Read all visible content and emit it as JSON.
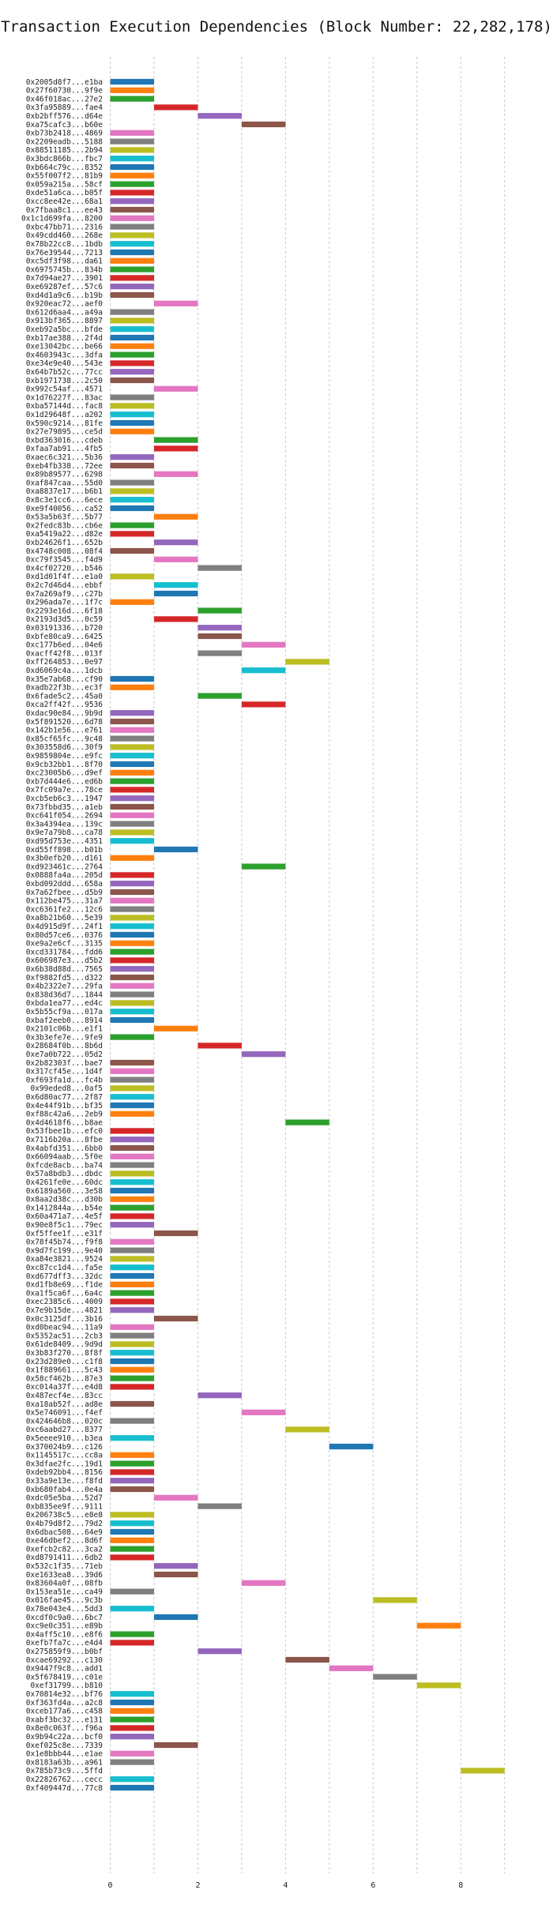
{
  "chart_data": {
    "type": "bar",
    "orientation": "horizontal-gantt",
    "title": "Transaction Execution Dependencies (Block Number: 22,282,178)",
    "xlabel": "",
    "ylabel": "",
    "xlim": [
      -0.1,
      9.6
    ],
    "xticks": [
      0,
      2,
      4,
      6,
      8
    ],
    "grid": true,
    "palette": [
      "#1f77b4",
      "#ff7f0e",
      "#2ca02c",
      "#d62728",
      "#9467bd",
      "#8c564b",
      "#e377c2",
      "#7f7f7f",
      "#bcbd22",
      "#17becf"
    ],
    "transactions": [
      {
        "label": "0x2005d8f7...e1ba",
        "start": 0
      },
      {
        "label": "0x27f60730...9f9e",
        "start": 0
      },
      {
        "label": "0x46f018ac...27e2",
        "start": 0
      },
      {
        "label": "0x3fa95889...fae4",
        "start": 1
      },
      {
        "label": "0xb2bff576...d64e",
        "start": 2
      },
      {
        "label": "0xa75cafc3...b60e",
        "start": 3
      },
      {
        "label": "0xb73b2418...4869",
        "start": 0
      },
      {
        "label": "0x2209eadb...5188",
        "start": 0
      },
      {
        "label": "0x88511185...2b94",
        "start": 0
      },
      {
        "label": "0x3bdc866b...fbc7",
        "start": 0
      },
      {
        "label": "0xb664c79c...8352",
        "start": 0
      },
      {
        "label": "0x55f007f2...81b9",
        "start": 0
      },
      {
        "label": "0x059a215a...58cf",
        "start": 0
      },
      {
        "label": "0xde51a6ca...b05f",
        "start": 0
      },
      {
        "label": "0xcc8ee42e...68a1",
        "start": 0
      },
      {
        "label": "0x7fbaa8c1...ee43",
        "start": 0
      },
      {
        "label": "0x1c1d699fa...8200",
        "start": 0
      },
      {
        "label": "0xbc47bb71...2316",
        "start": 0
      },
      {
        "label": "0x49cdd460...268e",
        "start": 0
      },
      {
        "label": "0x78b22cc8...1bdb",
        "start": 0
      },
      {
        "label": "0x76e39544...7213",
        "start": 0
      },
      {
        "label": "0xc5df3f98...da61",
        "start": 0
      },
      {
        "label": "0x6975745b...834b",
        "start": 0
      },
      {
        "label": "0x7d94ae27...3901",
        "start": 0
      },
      {
        "label": "0xe69287ef...57c6",
        "start": 0
      },
      {
        "label": "0xd4d1a9c6...b19b",
        "start": 0
      },
      {
        "label": "0x920eac72...aef0",
        "start": 1
      },
      {
        "label": "0x612d6aa4...a49a",
        "start": 0
      },
      {
        "label": "0x913bf365...8897",
        "start": 0
      },
      {
        "label": "0xeb92a5bc...bfde",
        "start": 0
      },
      {
        "label": "0xb17ae388...2f4d",
        "start": 0
      },
      {
        "label": "0xe13042bc...be66",
        "start": 0
      },
      {
        "label": "0x4603943c...3dfa",
        "start": 0
      },
      {
        "label": "0xe34e9e40...543e",
        "start": 0
      },
      {
        "label": "0x64b7b52c...77cc",
        "start": 0
      },
      {
        "label": "0xb1971738...2c50",
        "start": 0
      },
      {
        "label": "0x992c54af...4571",
        "start": 1
      },
      {
        "label": "0x1d76227f...83ac",
        "start": 0
      },
      {
        "label": "0xba57144d...fac8",
        "start": 0
      },
      {
        "label": "0x1d29648f...a202",
        "start": 0
      },
      {
        "label": "0x590c9214...81fe",
        "start": 0
      },
      {
        "label": "0x27e79895...ce5d",
        "start": 0
      },
      {
        "label": "0xbd363016...cdeb",
        "start": 1
      },
      {
        "label": "0xfaa7ab91...4fb5",
        "start": 1
      },
      {
        "label": "0xaec6c321...5b36",
        "start": 0
      },
      {
        "label": "0xeb4fb338...72ee",
        "start": 0
      },
      {
        "label": "0x89b89577...6298",
        "start": 1
      },
      {
        "label": "0xaf847caa...55d0",
        "start": 0
      },
      {
        "label": "0xa8837e17...b6b1",
        "start": 0
      },
      {
        "label": "0x8c3e1cc6...6ece",
        "start": 0
      },
      {
        "label": "0xe9f40056...ca52",
        "start": 0
      },
      {
        "label": "0x53a5b63f...5b77",
        "start": 1
      },
      {
        "label": "0x2fedc83b...cb6e",
        "start": 0
      },
      {
        "label": "0xa5419a22...d82e",
        "start": 0
      },
      {
        "label": "0xb24626f1...652b",
        "start": 1
      },
      {
        "label": "0x4748c008...08f4",
        "start": 0
      },
      {
        "label": "0xc79f3545...f4d9",
        "start": 1
      },
      {
        "label": "0x4cf02720...b546",
        "start": 2
      },
      {
        "label": "0xd1d01f4f...e1a0",
        "start": 0
      },
      {
        "label": "0x2c7d46d4...ebbf",
        "start": 1
      },
      {
        "label": "0x7a269af9...c27b",
        "start": 1
      },
      {
        "label": "0x296ada7e...1f7c",
        "start": 0
      },
      {
        "label": "0x2293e16d...6f18",
        "start": 2
      },
      {
        "label": "0x2193d3d5...0c59",
        "start": 1
      },
      {
        "label": "0x03191336...b720",
        "start": 2
      },
      {
        "label": "0xbfe80ca9...6425",
        "start": 2
      },
      {
        "label": "0xc177b6ed...04e6",
        "start": 3
      },
      {
        "label": "0xacff42f8...013f",
        "start": 2
      },
      {
        "label": "0xff264853...0e97",
        "start": 4
      },
      {
        "label": "0xd6069c4a...1dcb",
        "start": 3
      },
      {
        "label": "0x35e7ab68...cf90",
        "start": 0
      },
      {
        "label": "0xadb22f3b...ec3f",
        "start": 0
      },
      {
        "label": "0x6fade5c2...45a0",
        "start": 2
      },
      {
        "label": "0xca2ff42f...9536",
        "start": 3
      },
      {
        "label": "0xdac90e84...9b9d",
        "start": 0
      },
      {
        "label": "0x5f891520...6d78",
        "start": 0
      },
      {
        "label": "0x142b1e56...e761",
        "start": 0
      },
      {
        "label": "0x85cf65fc...9c48",
        "start": 0
      },
      {
        "label": "0x303558d6...30f9",
        "start": 0
      },
      {
        "label": "0x9859804e...e9fc",
        "start": 0
      },
      {
        "label": "0x9cb32bb1...8f70",
        "start": 0
      },
      {
        "label": "0xc23005b6...d9ef",
        "start": 0
      },
      {
        "label": "0xb7d444e6...ed6b",
        "start": 0
      },
      {
        "label": "0x7fc09a7e...78ce",
        "start": 0
      },
      {
        "label": "0xcb5eb6c3...1947",
        "start": 0
      },
      {
        "label": "0x73fbbd35...a1eb",
        "start": 0
      },
      {
        "label": "0xc641f054...2694",
        "start": 0
      },
      {
        "label": "0x3a4394ea...139c",
        "start": 0
      },
      {
        "label": "0x9e7a79b8...ca78",
        "start": 0
      },
      {
        "label": "0xd95d753e...4351",
        "start": 0
      },
      {
        "label": "0xd55ff898...b01b",
        "start": 1
      },
      {
        "label": "0x3b0efb20...d161",
        "start": 0
      },
      {
        "label": "0xd923461c...2764",
        "start": 3
      },
      {
        "label": "0x0888fa4a...205d",
        "start": 0
      },
      {
        "label": "0xbd092ddd...658a",
        "start": 0
      },
      {
        "label": "0x7a62fbee...d5b9",
        "start": 0
      },
      {
        "label": "0x112be475...31a7",
        "start": 0
      },
      {
        "label": "0xc6361fe2...12c6",
        "start": 0
      },
      {
        "label": "0xa8b21b60...5e39",
        "start": 0
      },
      {
        "label": "0x4d915d9f...24f1",
        "start": 0
      },
      {
        "label": "0x80d57ce6...0376",
        "start": 0
      },
      {
        "label": "0xe9a2e6cf...3135",
        "start": 0
      },
      {
        "label": "0xcd331784...fdd6",
        "start": 0
      },
      {
        "label": "0x606987e3...d5b2",
        "start": 0
      },
      {
        "label": "0x6b38d88d...7565",
        "start": 0
      },
      {
        "label": "0xf9882fd5...d322",
        "start": 0
      },
      {
        "label": "0x4b2322e7...29fa",
        "start": 0
      },
      {
        "label": "0x838d36d7...1844",
        "start": 0
      },
      {
        "label": "0xbda1ea77...ed4c",
        "start": 0
      },
      {
        "label": "0x5b55cf9a...017a",
        "start": 0
      },
      {
        "label": "0xbaf2eeb0...8914",
        "start": 0
      },
      {
        "label": "0x2101c06b...e1f1",
        "start": 1
      },
      {
        "label": "0x3b3efe7e...9fe9",
        "start": 0
      },
      {
        "label": "0x28684f0b...8b6d",
        "start": 2
      },
      {
        "label": "0xe7a0b722...05d2",
        "start": 3
      },
      {
        "label": "0x2b82303f...bae7",
        "start": 0
      },
      {
        "label": "0x317cf45e...1d4f",
        "start": 0
      },
      {
        "label": "0xf693fa1d...fc4b",
        "start": 0
      },
      {
        "label": "0x99eded8...0af5",
        "start": 0
      },
      {
        "label": "0x6d80ac77...2f87",
        "start": 0
      },
      {
        "label": "0x4e44f91b...bf35",
        "start": 0
      },
      {
        "label": "0xf88c42a6...2eb9",
        "start": 0
      },
      {
        "label": "0x4d4618f6...b8ae",
        "start": 4
      },
      {
        "label": "0x53fbee1b...efc0",
        "start": 0
      },
      {
        "label": "0x7116b20a...8fbe",
        "start": 0
      },
      {
        "label": "0x4abfd351...6bb0",
        "start": 0
      },
      {
        "label": "0x66094aab...5f0e",
        "start": 0
      },
      {
        "label": "0xfcde8acb...ba74",
        "start": 0
      },
      {
        "label": "0x57a8bdb3...dbdc",
        "start": 0
      },
      {
        "label": "0x4261fe0e...60dc",
        "start": 0
      },
      {
        "label": "0x6189a560...3e58",
        "start": 0
      },
      {
        "label": "0x8aa2d38c...d30b",
        "start": 0
      },
      {
        "label": "0x1412844a...b54e",
        "start": 0
      },
      {
        "label": "0x60a471a7...4e5f",
        "start": 0
      },
      {
        "label": "0x90e8f5c1...79ec",
        "start": 0
      },
      {
        "label": "0xf5ffee1f...e31f",
        "start": 1
      },
      {
        "label": "0x78f45b74...f9f8",
        "start": 0
      },
      {
        "label": "0x9d7fc199...9e40",
        "start": 0
      },
      {
        "label": "0xa84e3821...9524",
        "start": 0
      },
      {
        "label": "0xc87cc1d4...fa5e",
        "start": 0
      },
      {
        "label": "0xd677dff3...32dc",
        "start": 0
      },
      {
        "label": "0xd1fb8e69...f1de",
        "start": 0
      },
      {
        "label": "0xa1f5ca6f...6a4c",
        "start": 0
      },
      {
        "label": "0xec2385c6...4009",
        "start": 0
      },
      {
        "label": "0x7e9b15de...4821",
        "start": 0
      },
      {
        "label": "0x0c3125df...3b16",
        "start": 1
      },
      {
        "label": "0xd0beac94...11a9",
        "start": 0
      },
      {
        "label": "0x5352ac51...2cb3",
        "start": 0
      },
      {
        "label": "0x61de8409...9d9d",
        "start": 0
      },
      {
        "label": "0x3b83f270...8f8f",
        "start": 0
      },
      {
        "label": "0x23d289e0...c1f8",
        "start": 0
      },
      {
        "label": "0x1f889661...5c43",
        "start": 0
      },
      {
        "label": "0x58cf462b...87e3",
        "start": 0
      },
      {
        "label": "0xc014a37f...e4d8",
        "start": 0
      },
      {
        "label": "0x487ecf4e...83cc",
        "start": 2
      },
      {
        "label": "0xa18ab52f...ad8e",
        "start": 0
      },
      {
        "label": "0x5e746091...f4ef",
        "start": 3
      },
      {
        "label": "0x424646b8...020c",
        "start": 0
      },
      {
        "label": "0xc6aabd27...8377",
        "start": 4
      },
      {
        "label": "0x5eeee910...b3ea",
        "start": 0
      },
      {
        "label": "0x370024b9...c126",
        "start": 5
      },
      {
        "label": "0x1145517c...cc8a",
        "start": 0
      },
      {
        "label": "0x3dfae2fc...19d1",
        "start": 0
      },
      {
        "label": "0xdeb92bb4...8156",
        "start": 0
      },
      {
        "label": "0x33a9e13e...f8fd",
        "start": 0
      },
      {
        "label": "0xb680fab4...0e4a",
        "start": 0
      },
      {
        "label": "0xdc05e5ba...52d7",
        "start": 1
      },
      {
        "label": "0xb835ee9f...9111",
        "start": 2
      },
      {
        "label": "0x206738c5...e8e8",
        "start": 0
      },
      {
        "label": "0x4b79d8f2...79d2",
        "start": 0
      },
      {
        "label": "0x6dbac508...64e9",
        "start": 0
      },
      {
        "label": "0xe46dbef2...8d6f",
        "start": 0
      },
      {
        "label": "0xefcb2c82...3ca2",
        "start": 0
      },
      {
        "label": "0xd8791411...6db2",
        "start": 0
      },
      {
        "label": "0x532c1f35...71eb",
        "start": 1
      },
      {
        "label": "0xe1633ea8...39d6",
        "start": 1
      },
      {
        "label": "0x83604a0f...08fb",
        "start": 3
      },
      {
        "label": "0x153ea51e...ca49",
        "start": 0
      },
      {
        "label": "0x016fae45...9c3b",
        "start": 6
      },
      {
        "label": "0x78e043e4...5dd3",
        "start": 0
      },
      {
        "label": "0xcdf0c9a0...6bc7",
        "start": 1
      },
      {
        "label": "0xc9e0c351...e89b",
        "start": 7
      },
      {
        "label": "0x4aff5c10...e8f6",
        "start": 0
      },
      {
        "label": "0xefb7fa7c...e4d4",
        "start": 0
      },
      {
        "label": "0x275859f9...b0bf",
        "start": 2
      },
      {
        "label": "0xcae69292...c130",
        "start": 4
      },
      {
        "label": "0x9447f9c8...add1",
        "start": 5
      },
      {
        "label": "0x5f678419...c01e",
        "start": 6
      },
      {
        "label": "0xef31799...b810",
        "start": 7
      },
      {
        "label": "0x70814e32...bf76",
        "start": 0
      },
      {
        "label": "0xf363fd4a...a2c8",
        "start": 0
      },
      {
        "label": "0xceb177a6...c458",
        "start": 0
      },
      {
        "label": "0xabf3bc32...e131",
        "start": 0
      },
      {
        "label": "0x8e0c063f...f96a",
        "start": 0
      },
      {
        "label": "0x9b94c22a...bcf0",
        "start": 0
      },
      {
        "label": "0xef025c8e...7339",
        "start": 1
      },
      {
        "label": "0x1e8bbb44...e1ae",
        "start": 0
      },
      {
        "label": "0x8183a63b...a961",
        "start": 0
      },
      {
        "label": "0x785b73c9...5ffd",
        "start": 8
      },
      {
        "label": "0x22826762...cecc",
        "start": 0
      },
      {
        "label": "0xf409447d...77c8",
        "start": 0
      }
    ]
  }
}
